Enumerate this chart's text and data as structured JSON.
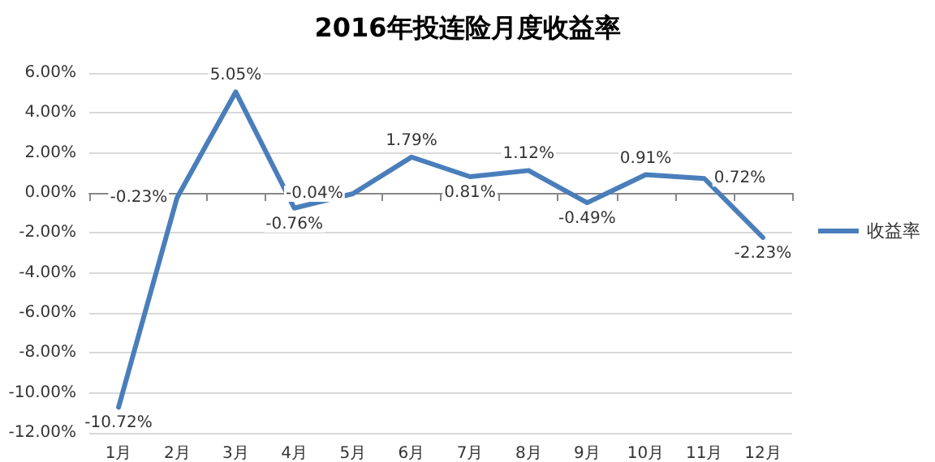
{
  "chart_data": {
    "type": "line",
    "title": "2016年投连险月度收益率",
    "categories": [
      "1月",
      "2月",
      "3月",
      "4月",
      "5月",
      "6月",
      "7月",
      "8月",
      "9月",
      "10月",
      "11月",
      "12月"
    ],
    "series": [
      {
        "name": "收益率",
        "color": "#4a7ebb",
        "values": [
          -10.72,
          -0.23,
          5.05,
          -0.76,
          -0.04,
          1.79,
          0.81,
          1.12,
          -0.49,
          0.91,
          0.72,
          -2.23
        ],
        "value_labels": [
          "-10.72%",
          "-0.23%",
          "5.05%",
          "-0.76%",
          "-0.04%",
          "1.79%",
          "0.81%",
          "1.12%",
          "-0.49%",
          "0.91%",
          "0.72%",
          "-2.23%"
        ]
      }
    ],
    "ylim": [
      -12,
      6
    ],
    "yticks": [
      {
        "value": -12,
        "label": "-12.00%"
      },
      {
        "value": -10,
        "label": "-10.00%"
      },
      {
        "value": -8,
        "label": "-8.00%"
      },
      {
        "value": -6,
        "label": "-6.00%"
      },
      {
        "value": -4,
        "label": "-4.00%"
      },
      {
        "value": -2,
        "label": "-2.00%"
      },
      {
        "value": 0,
        "label": "0.00%"
      },
      {
        "value": 2,
        "label": "2.00%"
      },
      {
        "value": 4,
        "label": "4.00%"
      },
      {
        "value": 6,
        "label": "6.00%"
      }
    ],
    "grid": "y",
    "legend": "right",
    "marker": "none",
    "line_style": "solid"
  }
}
